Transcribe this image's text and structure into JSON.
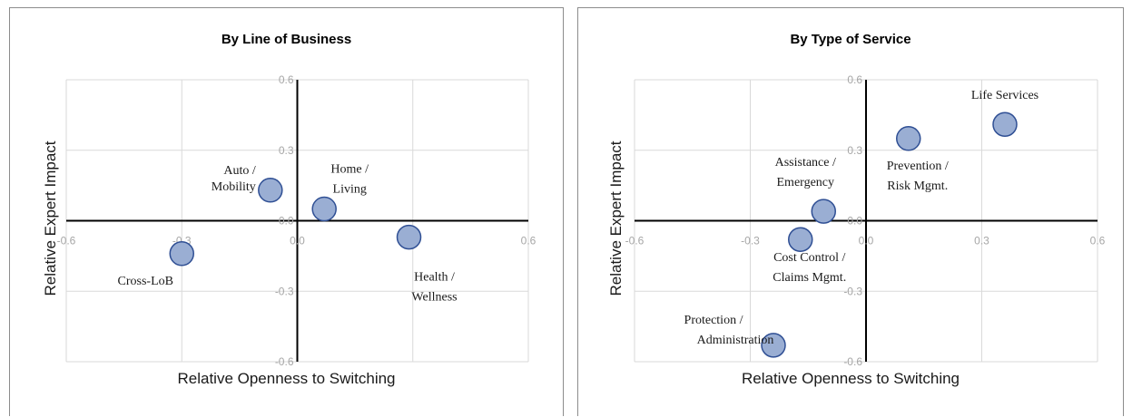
{
  "chart_data": [
    {
      "type": "scatter",
      "title": "By Line of Business",
      "xlabel": "Relative Openness to Switching",
      "ylabel": "Relative Expert Impact",
      "xlim": [
        -0.6,
        0.6
      ],
      "ylim": [
        -0.6,
        0.6
      ],
      "xticks": [
        "-0.6",
        "-0.3",
        "0.0",
        "0.3",
        "0.6"
      ],
      "yticks": [
        "-0.6",
        "-0.3",
        "0.0",
        "0.3",
        "0.6"
      ],
      "grid": true,
      "marker_color": "#9aaed3",
      "marker_edge": "#2f4f94",
      "points": [
        {
          "label": "Auto / Mobility",
          "x": -0.07,
          "y": 0.13
        },
        {
          "label": "Home / Living",
          "x": 0.07,
          "y": 0.05
        },
        {
          "label": "Health / Wellness",
          "x": 0.29,
          "y": -0.07
        },
        {
          "label": "Cross-LoB",
          "x": -0.3,
          "y": -0.14
        }
      ]
    },
    {
      "type": "scatter",
      "title": "By Type of Service",
      "xlabel": "Relative Openness to Switching",
      "ylabel": "Relative Expert Impact",
      "xlim": [
        -0.6,
        0.6
      ],
      "ylim": [
        -0.6,
        0.6
      ],
      "xticks": [
        "-0.6",
        "-0.3",
        "0.0",
        "0.3",
        "0.6"
      ],
      "yticks": [
        "-0.6",
        "-0.3",
        "0.0",
        "0.3",
        "0.6"
      ],
      "grid": true,
      "marker_color": "#9aaed3",
      "marker_edge": "#2f4f94",
      "points": [
        {
          "label": "Life Services",
          "x": 0.36,
          "y": 0.41
        },
        {
          "label": "Prevention / Risk Mgmt.",
          "x": 0.11,
          "y": 0.35
        },
        {
          "label": "Assistance / Emergency",
          "x": -0.11,
          "y": 0.04
        },
        {
          "label": "Cost Control / Claims Mgmt.",
          "x": -0.17,
          "y": -0.08
        },
        {
          "label": "Protection / Administration",
          "x": -0.24,
          "y": -0.53
        }
      ]
    }
  ]
}
